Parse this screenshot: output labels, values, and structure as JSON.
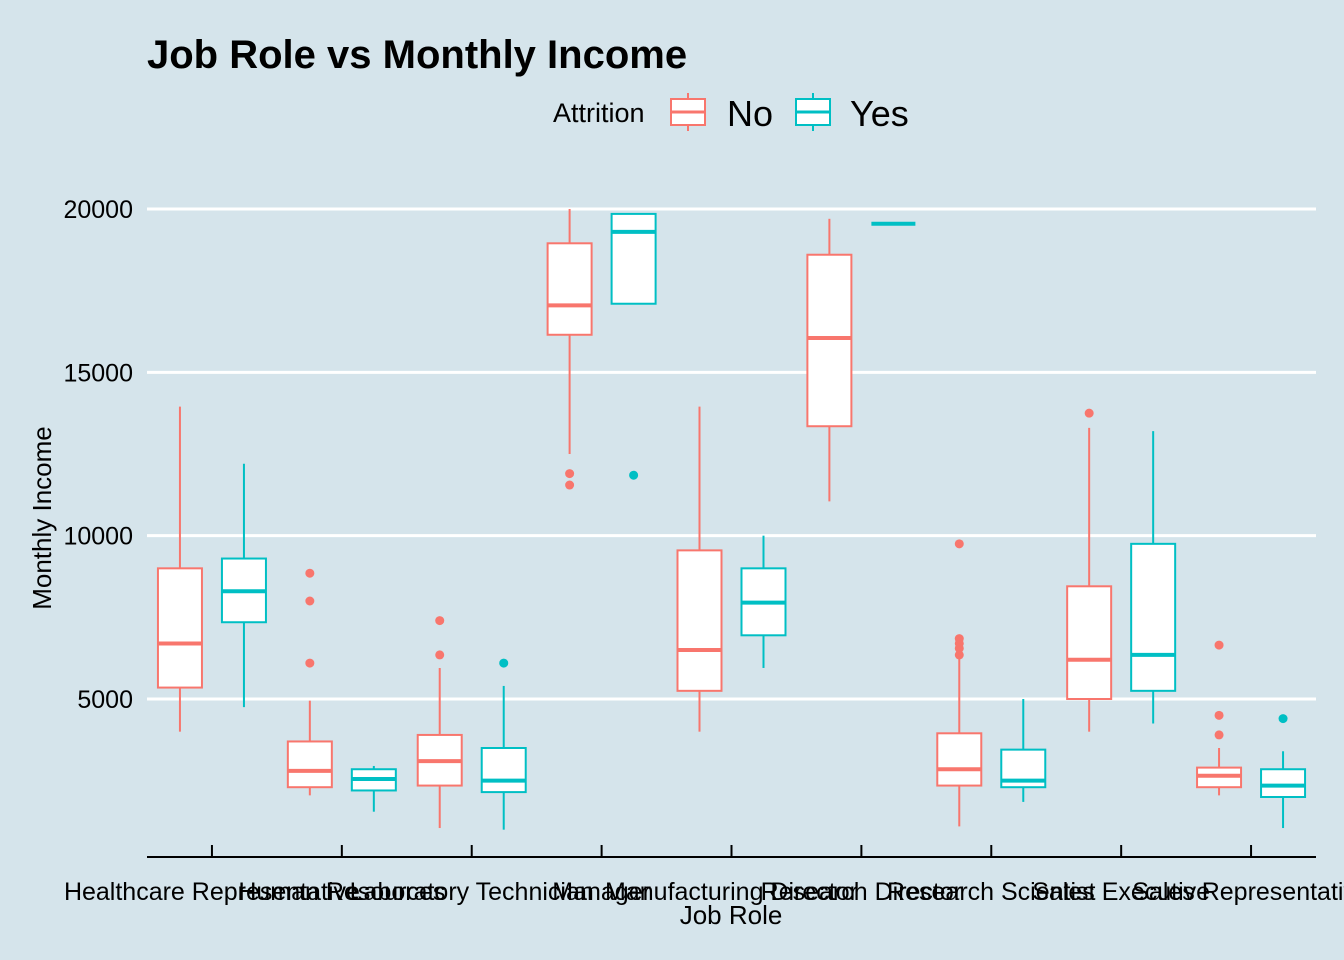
{
  "chart_data": {
    "type": "boxplot",
    "title": "Job Role vs Monthly Income",
    "xlabel": "Job Role",
    "ylabel": "Monthly Income",
    "ylim": [
      0,
      20800
    ],
    "yticks": [
      5000,
      10000,
      15000,
      20000
    ],
    "grid": "horizontal major lines",
    "legend": {
      "title": "Attrition",
      "position": "top",
      "entries": [
        {
          "name": "No",
          "color": "#f8766d"
        },
        {
          "name": "Yes",
          "color": "#00bfc4"
        }
      ]
    },
    "categories": [
      "Healthcare Representative",
      "Human Resources",
      "Laboratory Technician",
      "Manager",
      "Manufacturing Director",
      "Research Director",
      "Research Scientist",
      "Sales Executive",
      "Sales Representative"
    ],
    "series": [
      {
        "name": "No",
        "color": "#f8766d",
        "boxes": [
          {
            "min": 4000,
            "q1": 5350,
            "median": 6700,
            "q3": 9000,
            "max": 13950,
            "outliers": []
          },
          {
            "min": 2050,
            "q1": 2300,
            "median": 2800,
            "q3": 3700,
            "max": 4950,
            "outliers": [
              6100,
              8000,
              8850
            ]
          },
          {
            "min": 1050,
            "q1": 2350,
            "median": 3100,
            "q3": 3900,
            "max": 5950,
            "outliers": [
              6350,
              7400
            ]
          },
          {
            "min": 12500,
            "q1": 16150,
            "median": 17050,
            "q3": 18950,
            "max": 20000,
            "outliers": [
              11550,
              11900
            ]
          },
          {
            "min": 4000,
            "q1": 5250,
            "median": 6500,
            "q3": 9550,
            "max": 13950,
            "outliers": []
          },
          {
            "min": 11050,
            "q1": 13350,
            "median": 16050,
            "q3": 18600,
            "max": 19700,
            "outliers": []
          },
          {
            "min": 1100,
            "q1": 2350,
            "median": 2850,
            "q3": 3950,
            "max": 6300,
            "outliers": [
              6350,
              6550,
              6700,
              6850,
              9750
            ]
          },
          {
            "min": 4000,
            "q1": 5000,
            "median": 6200,
            "q3": 8450,
            "max": 13300,
            "outliers": [
              13750
            ]
          },
          {
            "min": 2050,
            "q1": 2300,
            "median": 2650,
            "q3": 2900,
            "max": 3500,
            "outliers": [
              3900,
              4500,
              6650
            ]
          }
        ]
      },
      {
        "name": "Yes",
        "color": "#00bfc4",
        "boxes": [
          {
            "min": 4750,
            "q1": 7350,
            "median": 8300,
            "q3": 9300,
            "max": 12200,
            "outliers": []
          },
          {
            "min": 1550,
            "q1": 2200,
            "median": 2550,
            "q3": 2850,
            "max": 2950,
            "outliers": []
          },
          {
            "min": 1000,
            "q1": 2150,
            "median": 2500,
            "q3": 3500,
            "max": 5400,
            "outliers": [
              6100
            ]
          },
          {
            "min": 17100,
            "q1": 17100,
            "median": 19300,
            "q3": 19850,
            "max": 19850,
            "outliers": [
              11850
            ]
          },
          {
            "min": 5950,
            "q1": 6950,
            "median": 7950,
            "q3": 9000,
            "max": 10000,
            "outliers": []
          },
          {
            "min": 19550,
            "q1": 19550,
            "median": 19550,
            "q3": 19550,
            "max": 19550,
            "outliers": []
          },
          {
            "min": 1850,
            "q1": 2300,
            "median": 2500,
            "q3": 3450,
            "max": 5000,
            "outliers": []
          },
          {
            "min": 4250,
            "q1": 5250,
            "median": 6350,
            "q3": 9750,
            "max": 13200,
            "outliers": []
          },
          {
            "min": 1050,
            "q1": 2000,
            "median": 2350,
            "q3": 2850,
            "max": 3400,
            "outliers": [
              4400
            ]
          }
        ]
      }
    ]
  }
}
